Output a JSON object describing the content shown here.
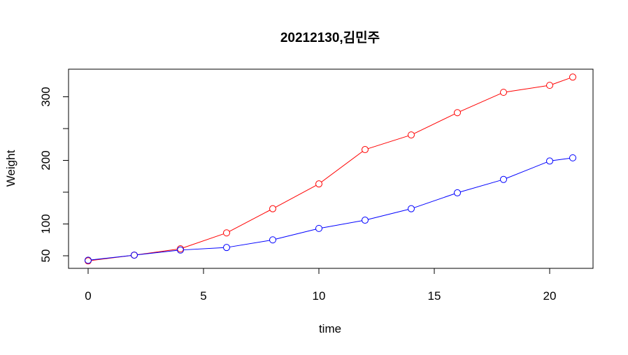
{
  "chart_data": {
    "type": "line",
    "title": "20212130,김민주",
    "xlabel": "time",
    "ylabel": "Weight",
    "xlim": [
      0,
      21
    ],
    "ylim": [
      42,
      333
    ],
    "x_ticks": [
      0,
      5,
      10,
      15,
      20
    ],
    "y_ticks": [
      50,
      100,
      150,
      200,
      250,
      300
    ],
    "y_tick_labels": [
      "50",
      "100",
      "",
      "200",
      "",
      "300"
    ],
    "grid": false,
    "x": [
      0,
      2,
      4,
      6,
      8,
      10,
      12,
      14,
      16,
      18,
      20,
      21
    ],
    "series": [
      {
        "color": "#ff0000",
        "values": [
          42,
          51,
          61,
          86,
          124,
          163,
          217,
          240,
          275,
          307,
          318,
          331
        ]
      },
      {
        "color": "#0000ff",
        "values": [
          43,
          51,
          59,
          63,
          75,
          93,
          106,
          124,
          149,
          170,
          199,
          204
        ]
      }
    ]
  }
}
